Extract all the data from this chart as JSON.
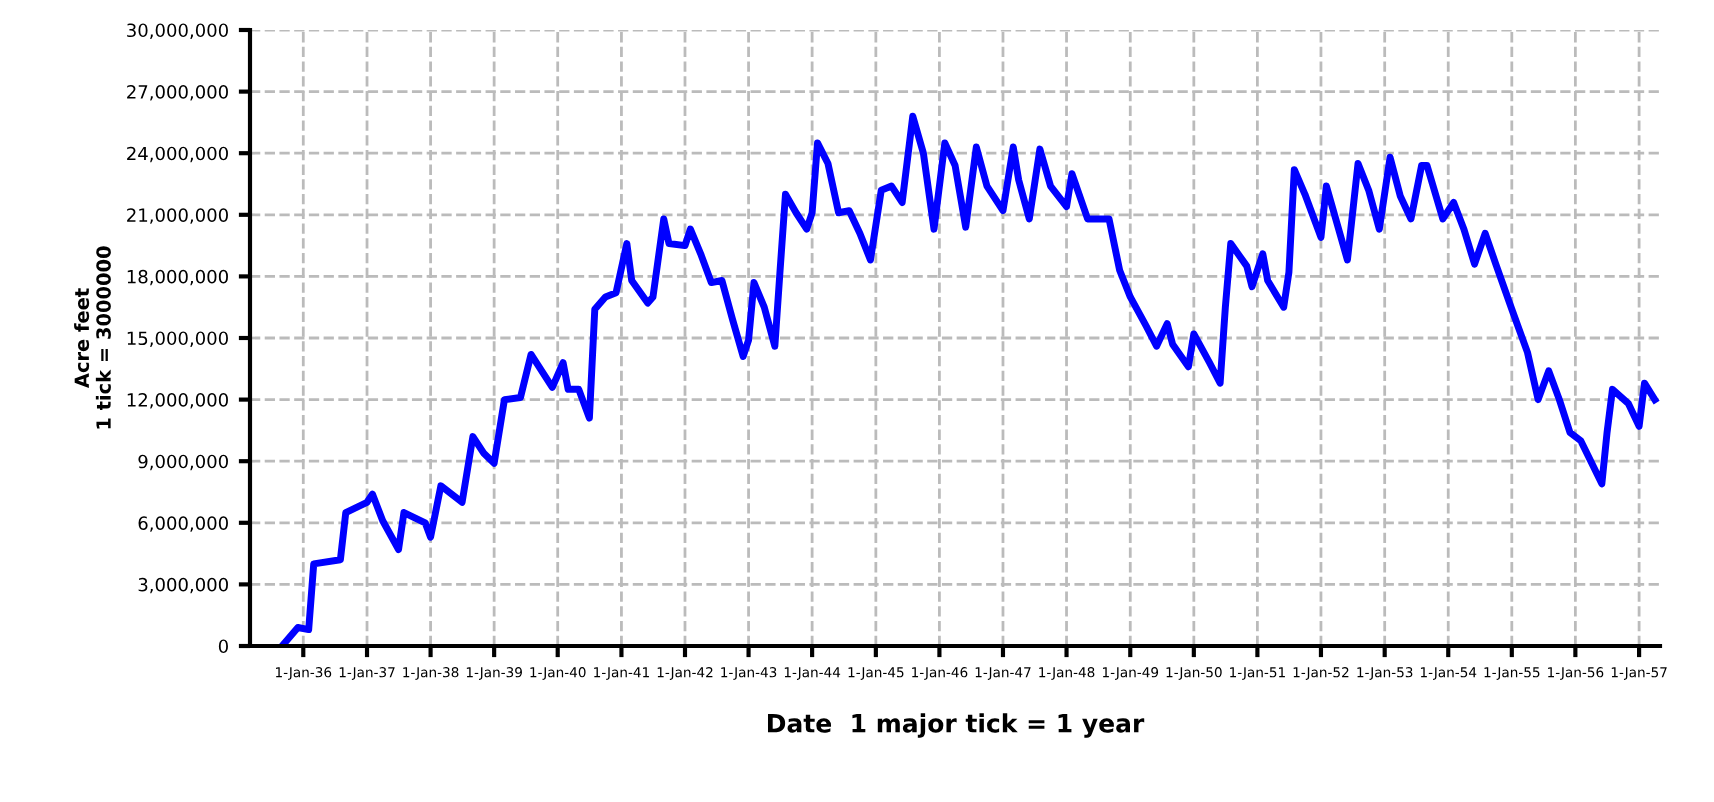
{
  "chart_data": {
    "type": "line",
    "xlabel": "Date  1 major tick = 1 year",
    "ylabel": "Acre feet\n1 tick = 3000000",
    "x": [
      "1935-09",
      "1935-12",
      "1936-02",
      "1936-03",
      "1936-08",
      "1936-09",
      "1937-01",
      "1937-02",
      "1937-04",
      "1937-07",
      "1937-08",
      "1937-12",
      "1938-01",
      "1938-03",
      "1938-07",
      "1938-09",
      "1938-11",
      "1939-01",
      "1939-03",
      "1939-06",
      "1939-08",
      "1939-12",
      "1940-02",
      "1940-03",
      "1940-05",
      "1940-07",
      "1940-08",
      "1940-10",
      "1940-12",
      "1941-02",
      "1941-03",
      "1941-06",
      "1941-07",
      "1941-09",
      "1941-10",
      "1942-01",
      "1942-02",
      "1942-04",
      "1942-06",
      "1942-08",
      "1942-10",
      "1942-12",
      "1943-01",
      "1943-02",
      "1943-04",
      "1943-06",
      "1943-07",
      "1943-08",
      "1943-10",
      "1943-12",
      "1944-01",
      "1944-02",
      "1944-04",
      "1944-06",
      "1944-08",
      "1944-10",
      "1944-12",
      "1945-02",
      "1945-04",
      "1945-06",
      "1945-08",
      "1945-10",
      "1945-12",
      "1946-02",
      "1946-04",
      "1946-06",
      "1946-08",
      "1946-10",
      "1947-01",
      "1947-03",
      "1947-04",
      "1947-06",
      "1947-08",
      "1947-10",
      "1948-01",
      "1948-02",
      "1948-05",
      "1948-09",
      "1948-11",
      "1949-01",
      "1949-04",
      "1949-06",
      "1949-08",
      "1949-09",
      "1949-12",
      "1950-01",
      "1950-04",
      "1950-06",
      "1950-07",
      "1950-08",
      "1950-11",
      "1950-12",
      "1951-02",
      "1951-03",
      "1951-06",
      "1951-07",
      "1951-08",
      "1951-10",
      "1952-01",
      "1952-02",
      "1952-06",
      "1952-08",
      "1952-10",
      "1952-12",
      "1953-02",
      "1953-04",
      "1953-06",
      "1953-08",
      "1953-09",
      "1953-12",
      "1954-02",
      "1954-04",
      "1954-06",
      "1954-08",
      "1954-10",
      "1955-01",
      "1955-04",
      "1955-06",
      "1955-08",
      "1955-10",
      "1955-12",
      "1956-02",
      "1956-06",
      "1956-07",
      "1956-08",
      "1956-11",
      "1957-01",
      "1957-02",
      "1957-04"
    ],
    "series": [
      {
        "color": "#0000ff",
        "values": [
          0,
          900000,
          800000,
          4000000,
          4200000,
          6500000,
          7000000,
          7400000,
          6100000,
          4700000,
          6500000,
          6000000,
          5300000,
          7800000,
          7000000,
          10200000,
          9400000,
          8900000,
          12000000,
          12100000,
          14200000,
          12600000,
          13800000,
          12500000,
          12500000,
          11100000,
          16400000,
          17000000,
          17200000,
          19600000,
          17800000,
          16700000,
          17000000,
          20800000,
          19600000,
          19500000,
          20300000,
          19100000,
          17700000,
          17800000,
          15900000,
          14100000,
          14900000,
          17700000,
          16500000,
          14600000,
          18300000,
          22000000,
          21100000,
          20300000,
          21100000,
          24500000,
          23500000,
          21100000,
          21200000,
          20100000,
          18800000,
          22200000,
          22400000,
          21600000,
          25800000,
          24000000,
          20300000,
          24500000,
          23400000,
          20400000,
          24300000,
          22400000,
          21200000,
          24300000,
          22700000,
          20800000,
          24200000,
          22400000,
          21400000,
          23000000,
          20800000,
          20800000,
          18300000,
          17000000,
          15600000,
          14600000,
          15700000,
          14700000,
          13600000,
          15200000,
          13800000,
          12800000,
          16500000,
          19600000,
          18500000,
          17500000,
          19100000,
          17800000,
          16500000,
          18200000,
          23200000,
          22000000,
          19900000,
          22400000,
          18800000,
          23500000,
          22200000,
          20300000,
          23800000,
          21900000,
          20800000,
          23400000,
          23400000,
          20800000,
          21600000,
          20300000,
          18600000,
          20100000,
          18600000,
          16400000,
          14300000,
          12000000,
          13400000,
          12000000,
          10400000,
          10000000,
          7900000,
          10400000,
          12500000,
          11800000,
          10700000,
          12800000,
          12000000
        ]
      }
    ],
    "xlim": [
      "1935-03",
      "1957-05"
    ],
    "xticks": [
      {
        "value": "1936-01-01",
        "label": "1-Jan-36"
      },
      {
        "value": "1937-01-01",
        "label": "1-Jan-37"
      },
      {
        "value": "1938-01-01",
        "label": "1-Jan-38"
      },
      {
        "value": "1939-01-01",
        "label": "1-Jan-39"
      },
      {
        "value": "1940-01-01",
        "label": "1-Jan-40"
      },
      {
        "value": "1941-01-01",
        "label": "1-Jan-41"
      },
      {
        "value": "1942-01-01",
        "label": "1-Jan-42"
      },
      {
        "value": "1943-01-01",
        "label": "1-Jan-43"
      },
      {
        "value": "1944-01-01",
        "label": "1-Jan-44"
      },
      {
        "value": "1945-01-01",
        "label": "1-Jan-45"
      },
      {
        "value": "1946-01-01",
        "label": "1-Jan-46"
      },
      {
        "value": "1947-01-01",
        "label": "1-Jan-47"
      },
      {
        "value": "1948-01-01",
        "label": "1-Jan-48"
      },
      {
        "value": "1949-01-01",
        "label": "1-Jan-49"
      },
      {
        "value": "1950-01-01",
        "label": "1-Jan-50"
      },
      {
        "value": "1951-01-01",
        "label": "1-Jan-51"
      },
      {
        "value": "1952-01-01",
        "label": "1-Jan-52"
      },
      {
        "value": "1953-01-01",
        "label": "1-Jan-53"
      },
      {
        "value": "1954-01-01",
        "label": "1-Jan-54"
      },
      {
        "value": "1955-01-01",
        "label": "1-Jan-55"
      },
      {
        "value": "1956-01-01",
        "label": "1-Jan-56"
      },
      {
        "value": "1957-01-01",
        "label": "1-Jan-57"
      }
    ],
    "ylim": [
      0,
      30000000
    ],
    "yticks": [
      {
        "value": 0,
        "label": "0"
      },
      {
        "value": 3000000,
        "label": "3,000,000"
      },
      {
        "value": 6000000,
        "label": "6,000,000"
      },
      {
        "value": 9000000,
        "label": "9,000,000"
      },
      {
        "value": 12000000,
        "label": "12,000,000"
      },
      {
        "value": 15000000,
        "label": "15,000,000"
      },
      {
        "value": 18000000,
        "label": "18,000,000"
      },
      {
        "value": 21000000,
        "label": "21,000,000"
      },
      {
        "value": 24000000,
        "label": "24,000,000"
      },
      {
        "value": 27000000,
        "label": "27,000,000"
      },
      {
        "value": 30000000,
        "label": "30,000,000"
      }
    ],
    "grid": true,
    "marker": "none",
    "line_style": "solid"
  }
}
